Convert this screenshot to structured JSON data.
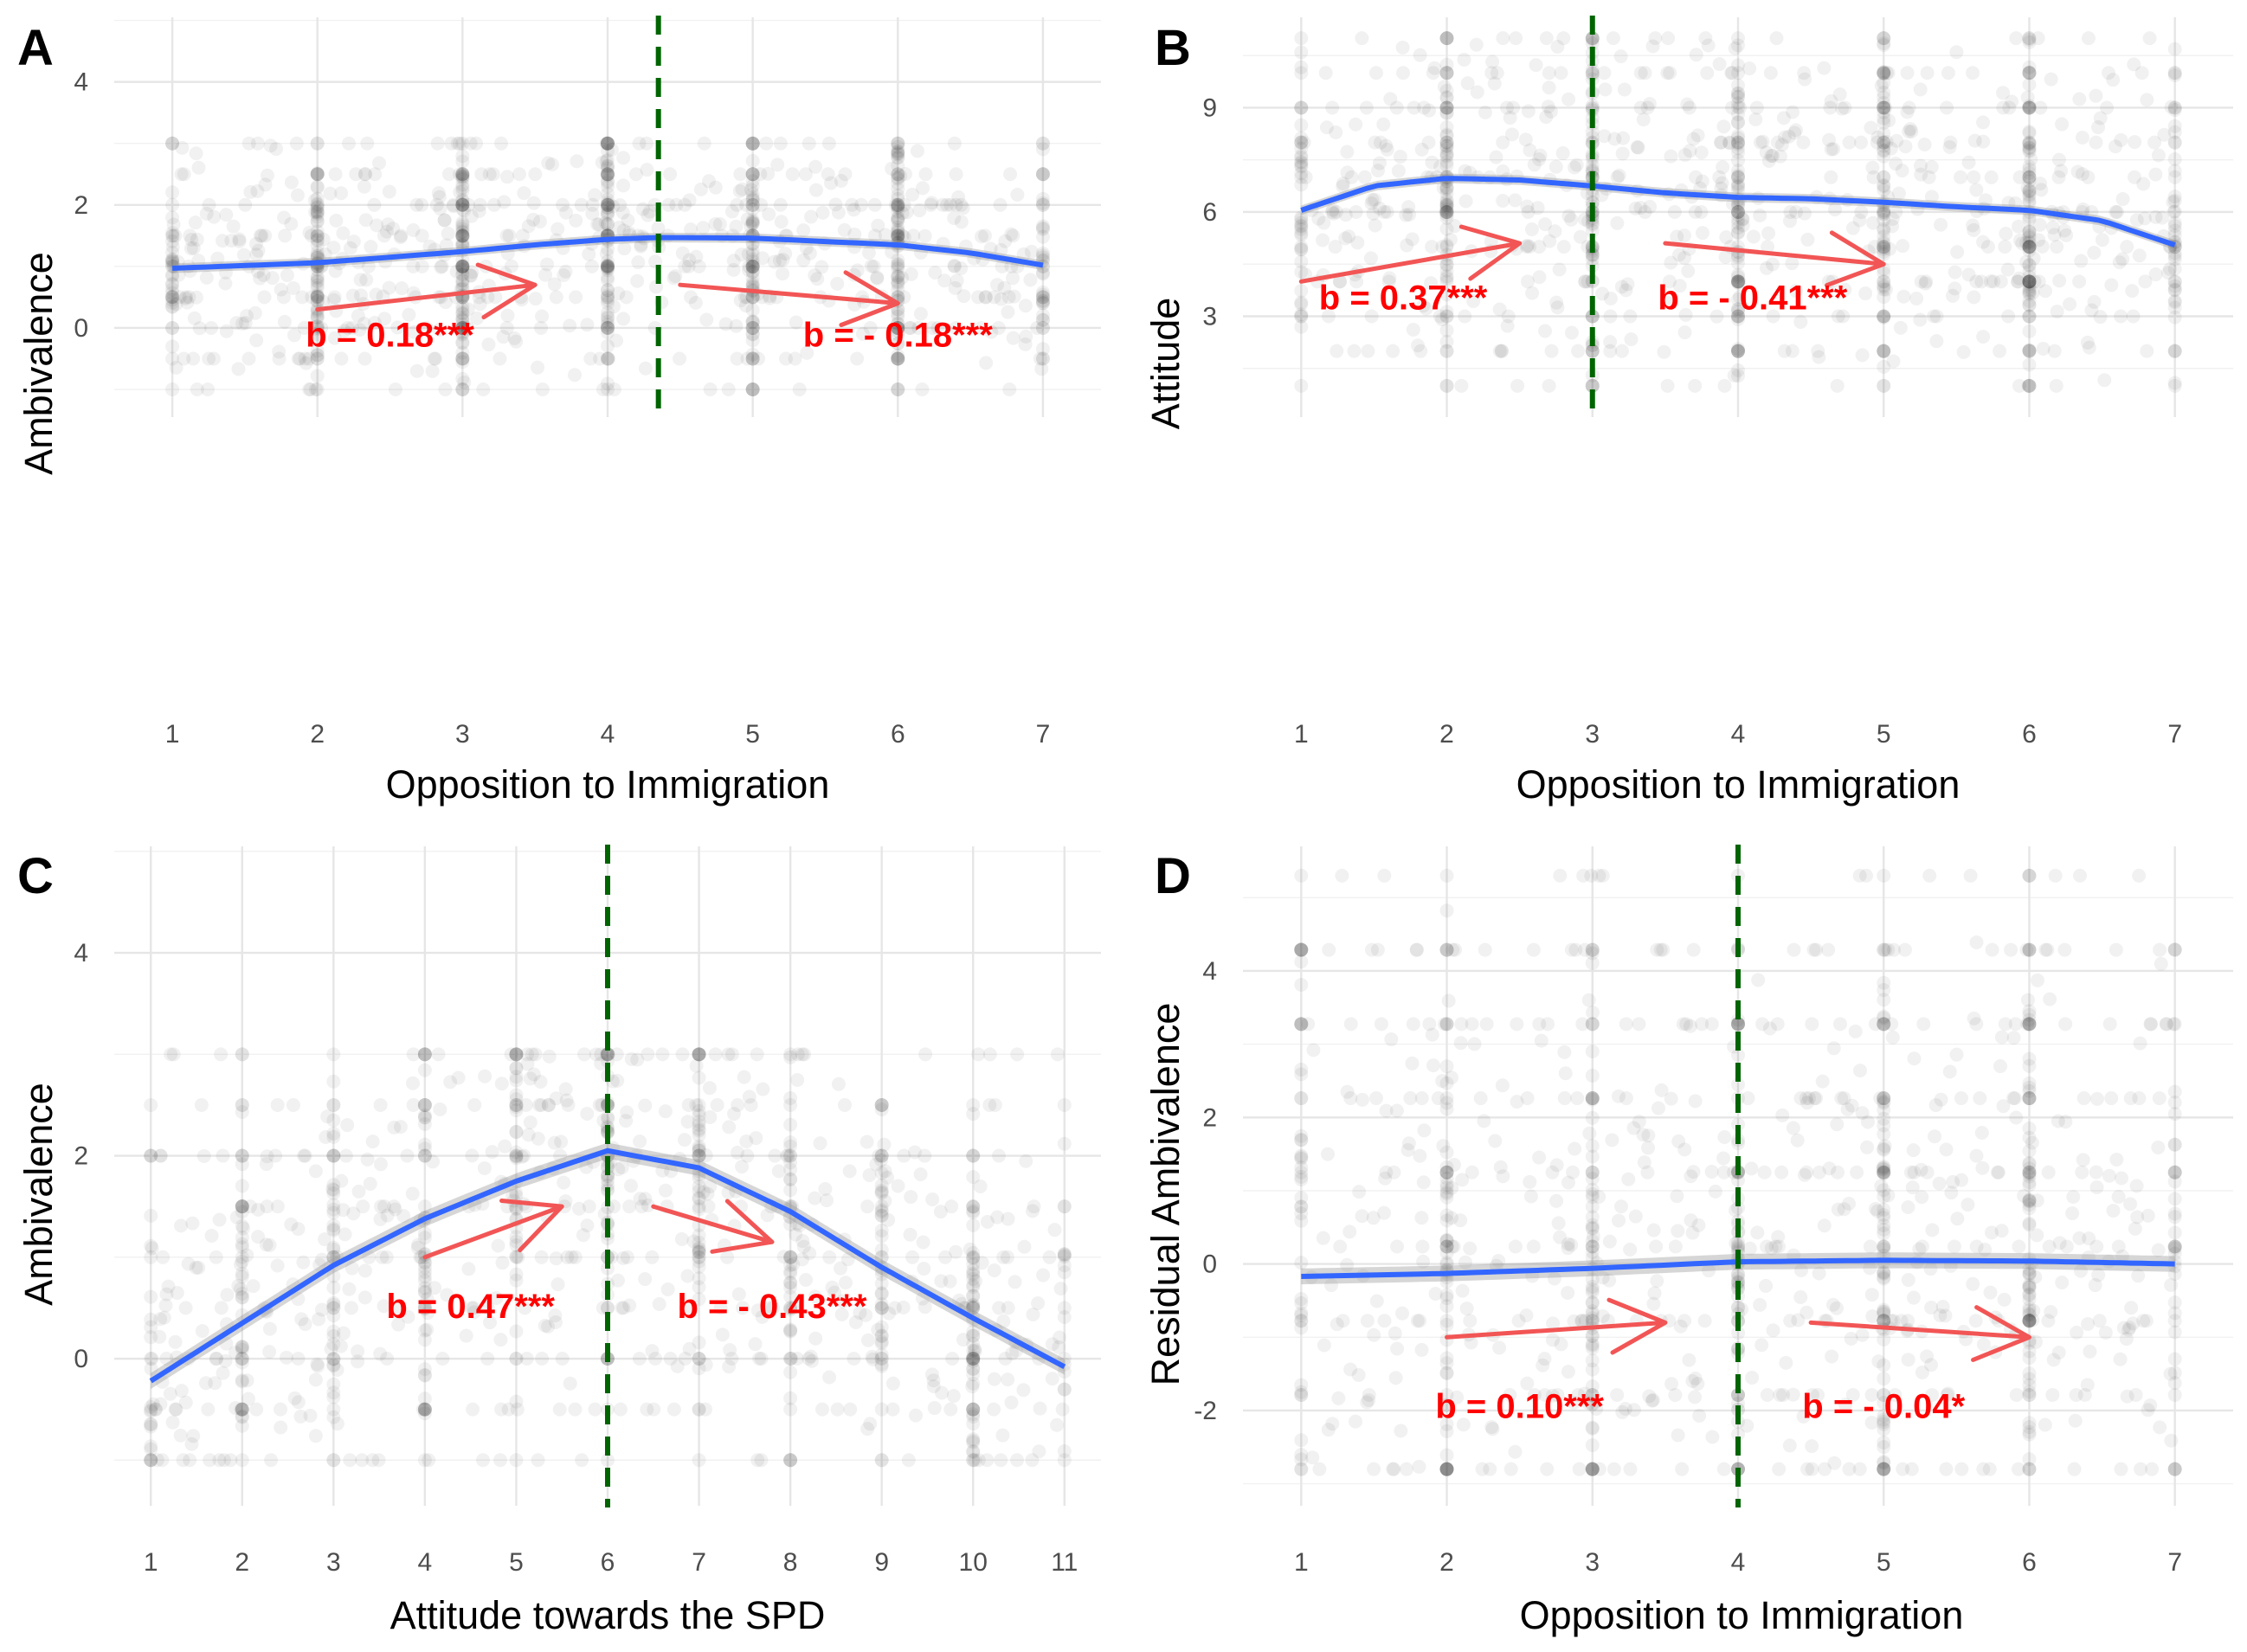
{
  "colors": {
    "points": "#000000",
    "smooth_line": "#3366ff",
    "confidence_band": "#999999",
    "cut_line": "#006400",
    "arrow": "#f25555",
    "annotation": "#ff0000"
  },
  "chart_data": [
    {
      "panel": "A",
      "type": "scatter",
      "xlabel": "Opposition to Immigration",
      "ylabel": "Ambivalence",
      "xlim": [
        0.6,
        7.4
      ],
      "ylim": [
        -1.45,
        5.05
      ],
      "xticks": [
        1,
        2,
        3,
        4,
        5,
        6,
        7
      ],
      "yticks": [
        0,
        2,
        4
      ],
      "y_jitter_range": [
        -1,
        3
      ],
      "cut_x": 4.35,
      "smooth": {
        "x": [
          1,
          2,
          3,
          3.5,
          4,
          4.35,
          5,
          6,
          6.5,
          7
        ],
        "y": [
          0.97,
          1.06,
          1.24,
          1.35,
          1.44,
          1.47,
          1.46,
          1.35,
          1.22,
          1.02
        ]
      },
      "arrows": [
        {
          "from": [
            2.0,
            0.3
          ],
          "to": [
            3.5,
            0.7
          ]
        },
        {
          "from": [
            4.5,
            0.7
          ],
          "to": [
            6.0,
            0.4
          ]
        }
      ],
      "annotations": [
        {
          "text": "b = 0.18***",
          "x": 2.5,
          "y": -0.3
        },
        {
          "text": "b = - 0.18***",
          "x": 6.0,
          "y": -0.3
        }
      ]
    },
    {
      "panel": "B",
      "type": "scatter",
      "xlabel": "Opposition to Immigration",
      "ylabel": "Attitude",
      "xlim": [
        0.6,
        7.4
      ],
      "ylim": [
        0.1,
        11.6
      ],
      "xticks": [
        1,
        2,
        3,
        4,
        5,
        6,
        7
      ],
      "yticks": [
        3,
        6,
        9
      ],
      "y_jitter_range": [
        1,
        11
      ],
      "cut_x": 3,
      "smooth": {
        "x": [
          1,
          1.5,
          2,
          2.5,
          3,
          3.5,
          4,
          4.5,
          5,
          5.5,
          6,
          6.5,
          7
        ],
        "y": [
          6.05,
          6.75,
          6.97,
          6.92,
          6.75,
          6.55,
          6.42,
          6.38,
          6.28,
          6.15,
          6.05,
          5.75,
          5.05
        ]
      },
      "arrows": [
        {
          "from": [
            1.0,
            4.0
          ],
          "to": [
            2.5,
            5.1
          ]
        },
        {
          "from": [
            3.5,
            5.1
          ],
          "to": [
            5.0,
            4.5
          ]
        }
      ],
      "annotations": [
        {
          "text": "b = 0.37***",
          "x": 1.7,
          "y": 3.2
        },
        {
          "text": "b = - 0.41***",
          "x": 4.1,
          "y": 3.2
        }
      ]
    },
    {
      "panel": "C",
      "type": "scatter",
      "xlabel": "Attitude towards the SPD",
      "ylabel": "Ambivalence",
      "xlim": [
        0.6,
        11.4
      ],
      "ylim": [
        -1.45,
        5.05
      ],
      "xticks": [
        1,
        2,
        3,
        4,
        5,
        6,
        7,
        8,
        9,
        10,
        11
      ],
      "yticks": [
        0,
        2,
        4
      ],
      "y_jitter_range": [
        -1,
        3
      ],
      "cut_x": 6,
      "smooth": {
        "x": [
          1,
          2,
          3,
          4,
          5,
          6,
          7,
          8,
          9,
          10,
          11
        ],
        "y": [
          -0.22,
          0.35,
          0.92,
          1.38,
          1.75,
          2.05,
          1.88,
          1.45,
          0.9,
          0.4,
          -0.08
        ]
      },
      "arrows": [
        {
          "from": [
            4.0,
            1.0
          ],
          "to": [
            5.5,
            1.5
          ]
        },
        {
          "from": [
            6.5,
            1.5
          ],
          "to": [
            7.8,
            1.15
          ]
        }
      ],
      "annotations": [
        {
          "text": "b = 0.47***",
          "x": 4.5,
          "y": 0.4
        },
        {
          "text": "b = - 0.43***",
          "x": 7.8,
          "y": 0.4
        }
      ]
    },
    {
      "panel": "D",
      "type": "scatter",
      "xlabel": "Opposition to Immigration",
      "ylabel": "Residual Ambivalence",
      "xlim": [
        0.6,
        7.4
      ],
      "ylim": [
        -3.3,
        5.7
      ],
      "xticks": [
        1,
        2,
        3,
        4,
        5,
        6,
        7
      ],
      "yticks": [
        -2,
        0,
        2,
        4
      ],
      "y_jitter_range": [
        -2.8,
        5.3
      ],
      "cut_x": 4,
      "smooth": {
        "x": [
          1,
          2,
          3,
          4,
          5,
          6,
          7
        ],
        "y": [
          -0.17,
          -0.13,
          -0.06,
          0.03,
          0.05,
          0.04,
          0.0
        ]
      },
      "arrows": [
        {
          "from": [
            2.0,
            -1.0
          ],
          "to": [
            3.5,
            -0.8
          ]
        },
        {
          "from": [
            4.5,
            -0.8
          ],
          "to": [
            6.0,
            -1.0
          ]
        }
      ],
      "annotations": [
        {
          "text": "b = 0.10***",
          "x": 2.5,
          "y": -2.1
        },
        {
          "text": "b = - 0.04*",
          "x": 5.0,
          "y": -2.1
        }
      ]
    }
  ]
}
